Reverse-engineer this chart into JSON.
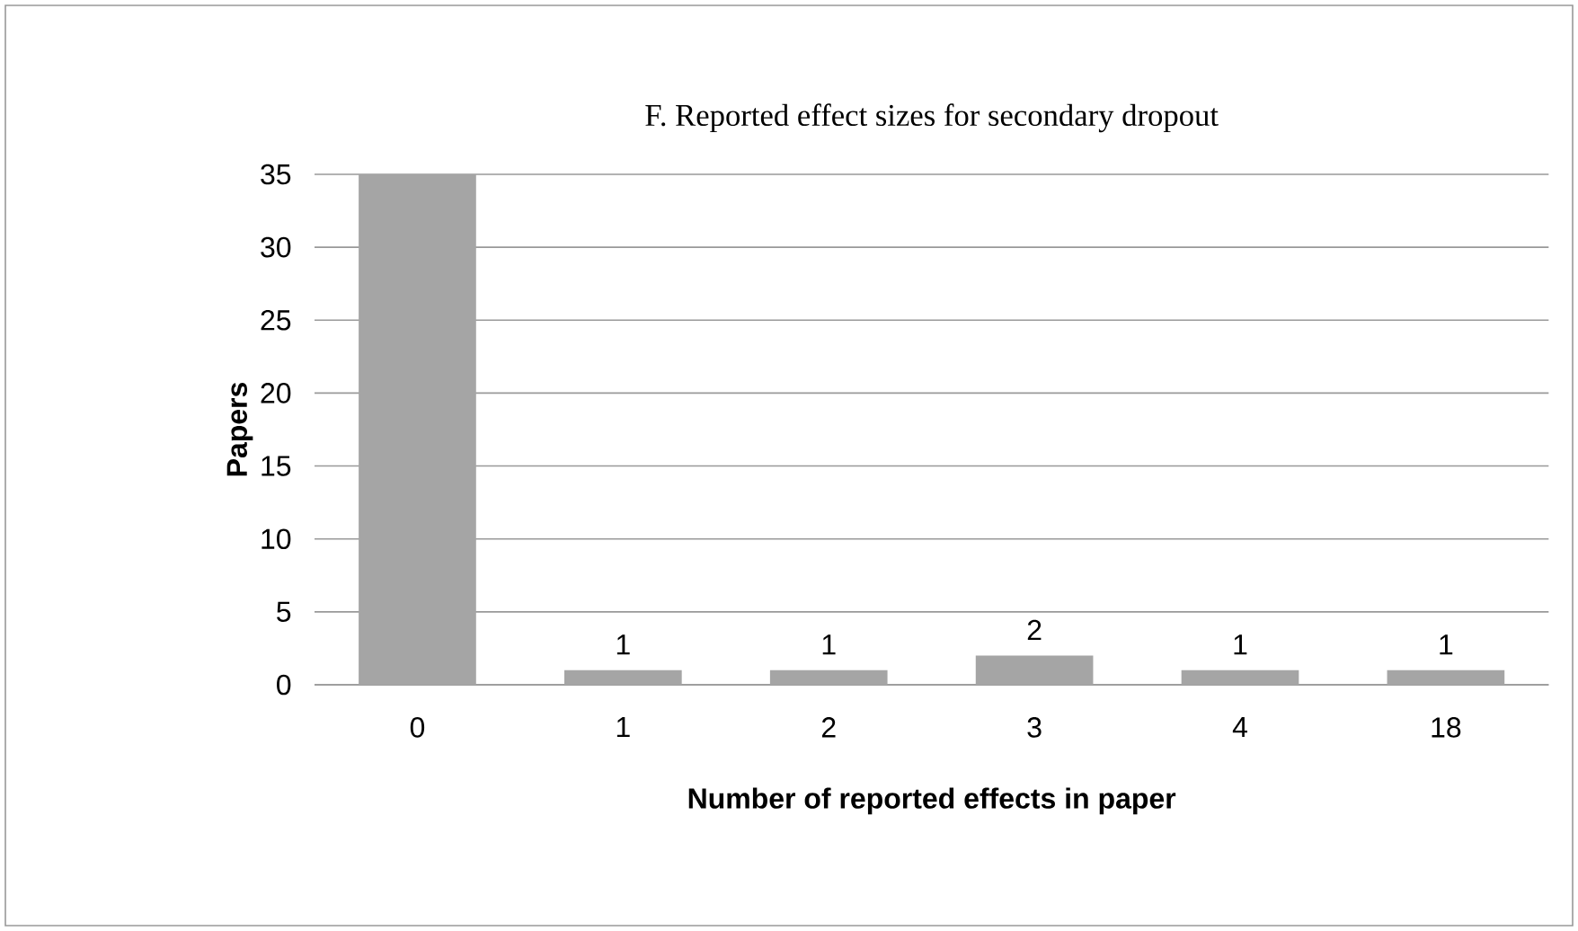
{
  "chart_data": {
    "type": "bar",
    "title": "F. Reported effect sizes for secondary dropout",
    "xlabel": "Number of reported effects in paper",
    "ylabel": "Papers",
    "categories": [
      "0",
      "1",
      "2",
      "3",
      "4",
      "18"
    ],
    "values": [
      35,
      1,
      1,
      2,
      1,
      1
    ],
    "value_labels": [
      null,
      "1",
      "1",
      "2",
      "1",
      "1"
    ],
    "color": "#a5a5a5",
    "ylim": [
      0,
      35
    ],
    "yticks": [
      0,
      5,
      10,
      15,
      20,
      25,
      30,
      35
    ],
    "grid": "y"
  }
}
